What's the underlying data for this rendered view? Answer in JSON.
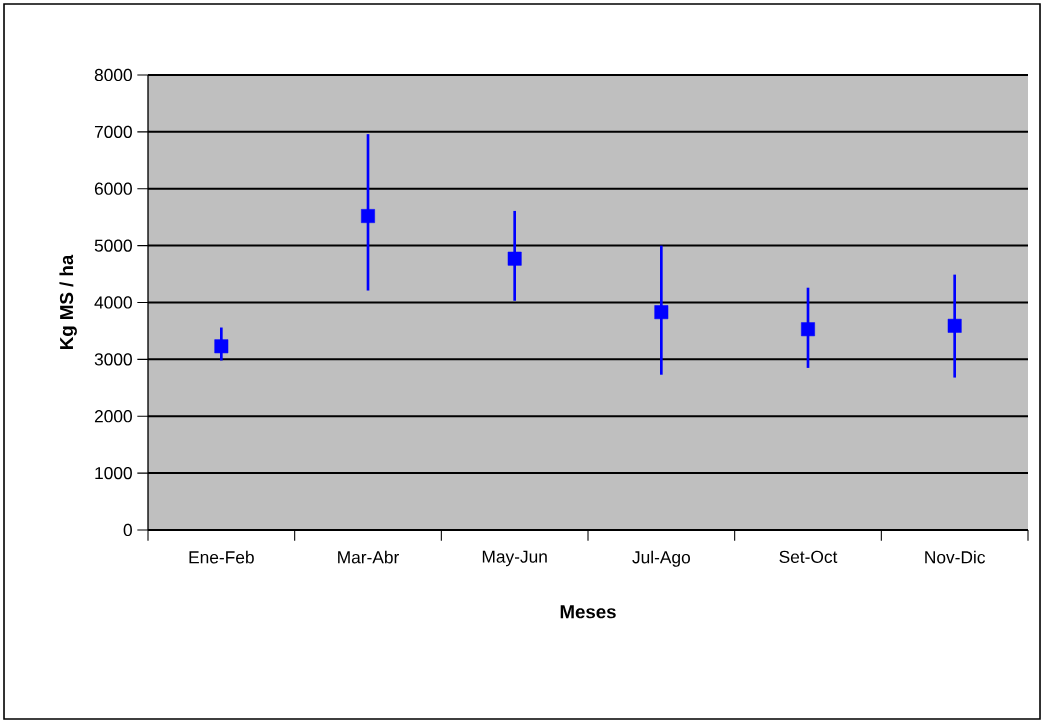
{
  "chart_data": {
    "type": "scatter",
    "xlabel": "Meses",
    "ylabel": "Kg MS / ha",
    "categories": [
      "Ene-Feb",
      "Mar-Abr",
      "May-Jun",
      "Jul-Ago",
      "Set-Oct",
      "Nov-Dic"
    ],
    "values": [
      3230,
      5520,
      4770,
      3830,
      3530,
      3590
    ],
    "errors": [
      [
        2980,
        3560
      ],
      [
        4210,
        6960
      ],
      [
        4030,
        5610
      ],
      [
        2730,
        5000
      ],
      [
        2850,
        4260
      ],
      [
        2680,
        4490
      ]
    ],
    "color": "#0000ff",
    "marker": "square",
    "ylim": [
      0,
      8000
    ],
    "yticks": [
      0,
      1000,
      2000,
      3000,
      4000,
      5000,
      6000,
      7000,
      8000
    ],
    "grid": "y"
  }
}
